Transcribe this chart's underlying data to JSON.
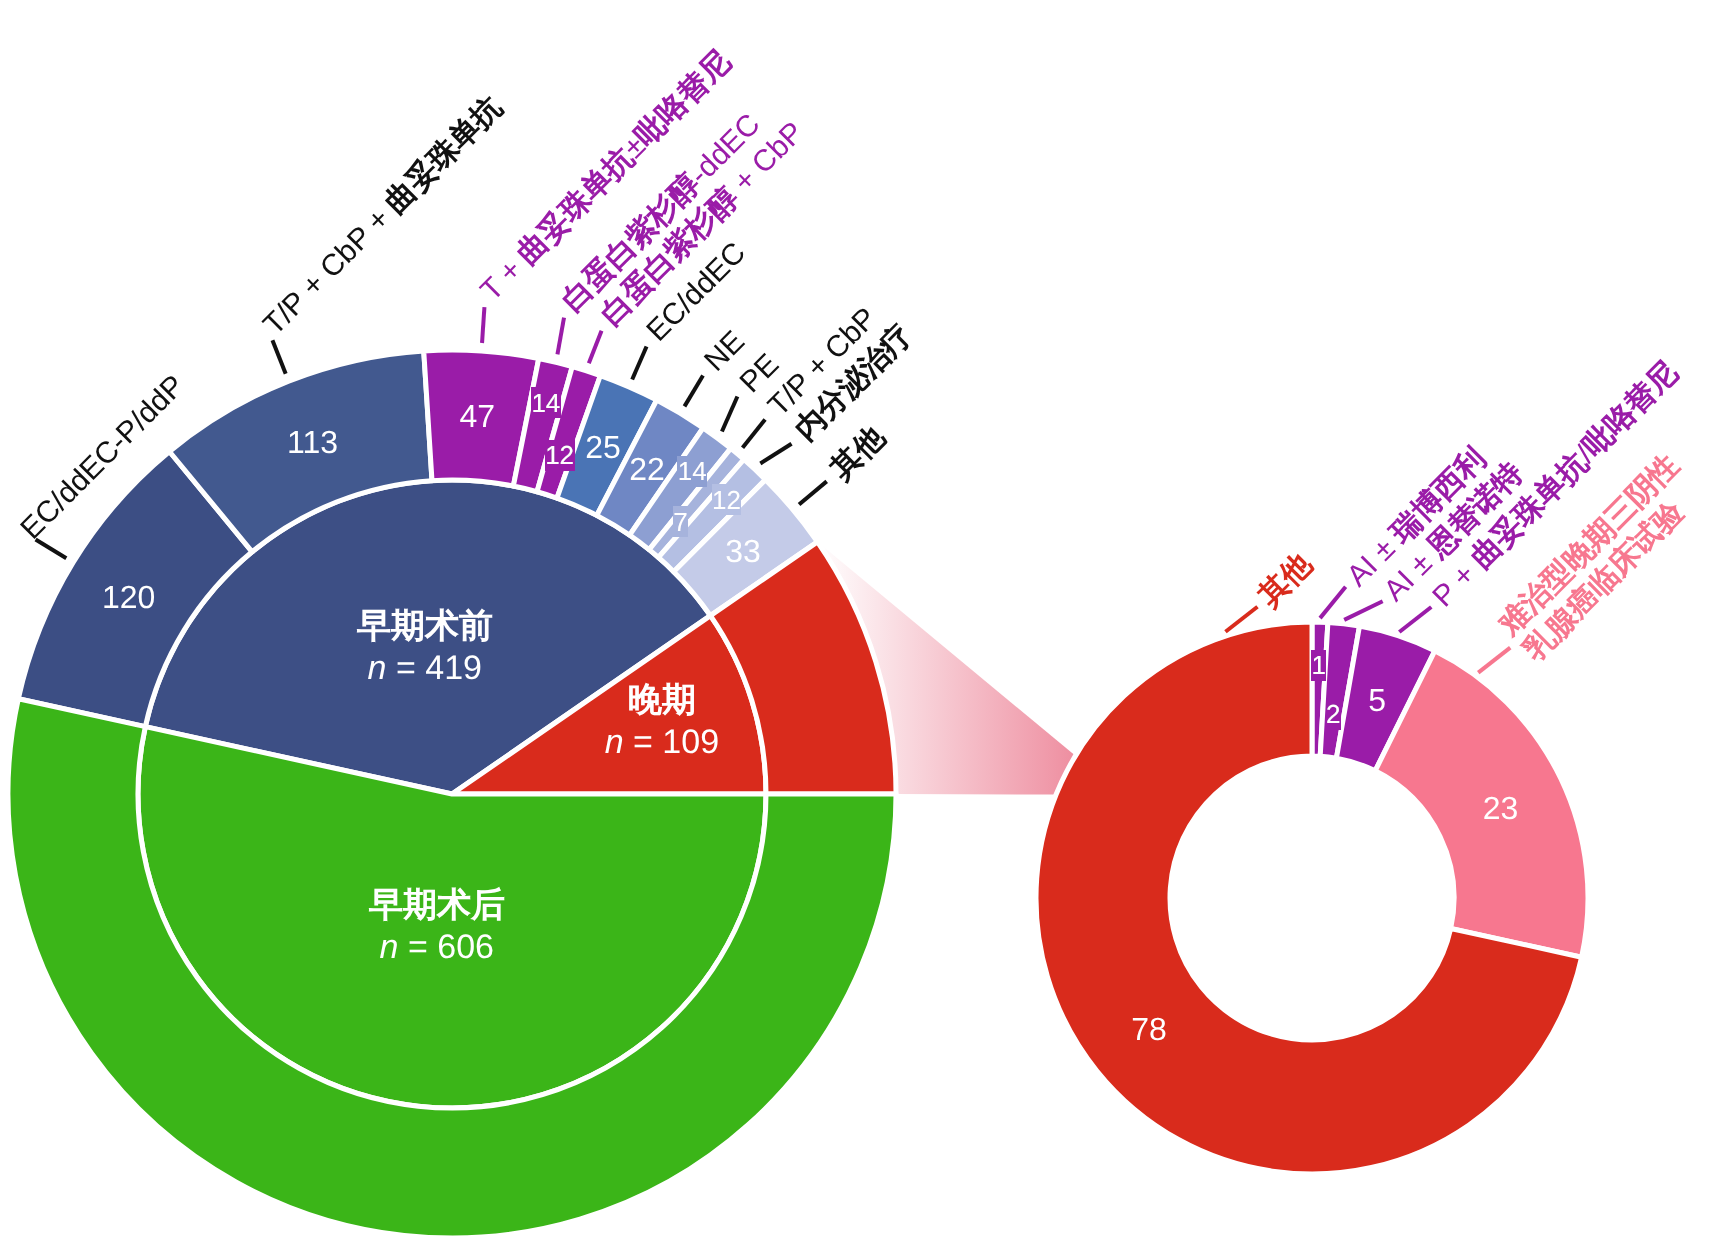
{
  "chart_data": [
    {
      "type": "pie",
      "categories": [
        "早期术前",
        "晚期",
        "早期术后"
      ],
      "values": [
        419,
        109,
        606
      ],
      "colors": [
        "#3d4f85",
        "#d92b1c",
        "#3bb518"
      ],
      "value_labels": [
        "n = 419",
        "n = 109",
        "n = 606"
      ]
    },
    {
      "type": "donut",
      "categories": [
        "EC/ddEC-P/ddP",
        "T/P + CbP + 曲妥珠单抗",
        "T + 曲妥珠单抗±吡咯替尼",
        "白蛋白紫杉醇-ddEC",
        "白蛋白紫杉醇 + CbP",
        "EC/ddEC",
        "NE",
        "PE",
        "T/P + CbP",
        "内分泌治疗",
        "其他",
        null,
        null
      ],
      "values": [
        120,
        113,
        47,
        14,
        12,
        25,
        22,
        14,
        7,
        12,
        33,
        109,
        606
      ],
      "colors": [
        "#3c4e84",
        "#42598f",
        "#9a1ca8",
        "#9a1ca8",
        "#9a1ca8",
        "#4a74b5",
        "#6f87c4",
        "#8d9fd2",
        "#a6b3dc",
        "#b4bfe3",
        "#c4cbe8",
        "#d92b1c",
        "#3bb518"
      ],
      "value_labels": [
        "120",
        "113",
        "47",
        "14",
        "12",
        "25",
        "22",
        "14",
        "7",
        "12",
        "33",
        null,
        null
      ]
    },
    {
      "type": "donut",
      "categories": [
        "AI ± 瑞博西利",
        "AI ± 恩替诺特",
        "P + 曲妥珠单抗/吡咯替尼",
        "难治型晚期三阴性\n乳腺癌临床试验",
        "其他"
      ],
      "values": [
        1,
        2,
        5,
        23,
        78
      ],
      "colors": [
        "#9a1ca8",
        "#9a1ca8",
        "#9a1ca8",
        "#f7778f",
        "#d92b1c"
      ],
      "data_labels": true
    }
  ]
}
